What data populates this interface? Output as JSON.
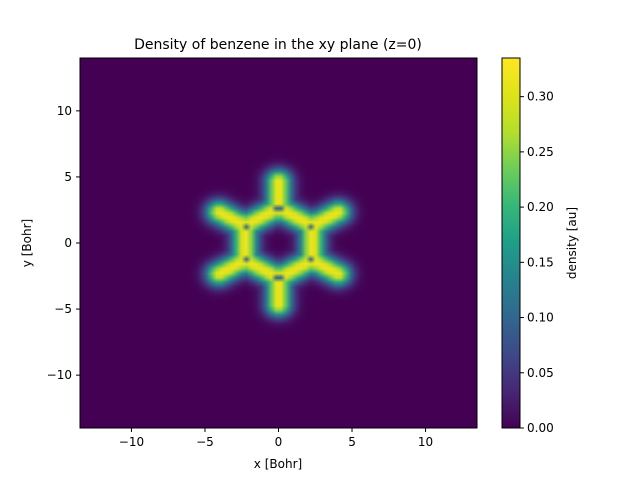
{
  "chart_data": {
    "type": "heatmap",
    "title": "Density of benzene in the xy plane (z=0)",
    "xlabel": "x [Bohr]",
    "ylabel": "y [Bohr]",
    "colorbar_label": "density [au]",
    "xlim": [
      -13.5,
      13.5
    ],
    "ylim": [
      -14.0,
      14.0
    ],
    "xticks": [
      -10,
      -5,
      0,
      5,
      10
    ],
    "xtick_labels": [
      "−10",
      "−5",
      "0",
      "5",
      "10"
    ],
    "yticks": [
      -10,
      -5,
      0,
      5,
      10
    ],
    "ytick_labels": [
      "−10",
      "−5",
      "0",
      "5",
      "10"
    ],
    "colorbar_range": [
      0.0,
      0.335
    ],
    "colorbar_ticks": [
      0.0,
      0.05,
      0.1,
      0.15,
      0.2,
      0.25,
      0.3
    ],
    "colorbar_tick_labels": [
      "0.00",
      "0.05",
      "0.10",
      "0.15",
      "0.20",
      "0.25",
      "0.30"
    ],
    "colormap": "viridis",
    "grid": false,
    "density_model": {
      "carbon_positions": [
        [
          0.0,
          2.64
        ],
        [
          2.29,
          1.32
        ],
        [
          2.29,
          -1.32
        ],
        [
          0.0,
          -2.64
        ],
        [
          -2.29,
          -1.32
        ],
        [
          -2.29,
          1.32
        ]
      ],
      "hydrogen_positions": [
        [
          0.0,
          4.68
        ],
        [
          4.05,
          2.34
        ],
        [
          4.05,
          -2.34
        ],
        [
          0.0,
          -4.68
        ],
        [
          -4.05,
          -2.34
        ],
        [
          -4.05,
          2.34
        ]
      ],
      "bond_density": 0.32,
      "bond_width": 0.6,
      "atom_core_density": 0.1,
      "atom_core_radius": 0.25
    }
  }
}
